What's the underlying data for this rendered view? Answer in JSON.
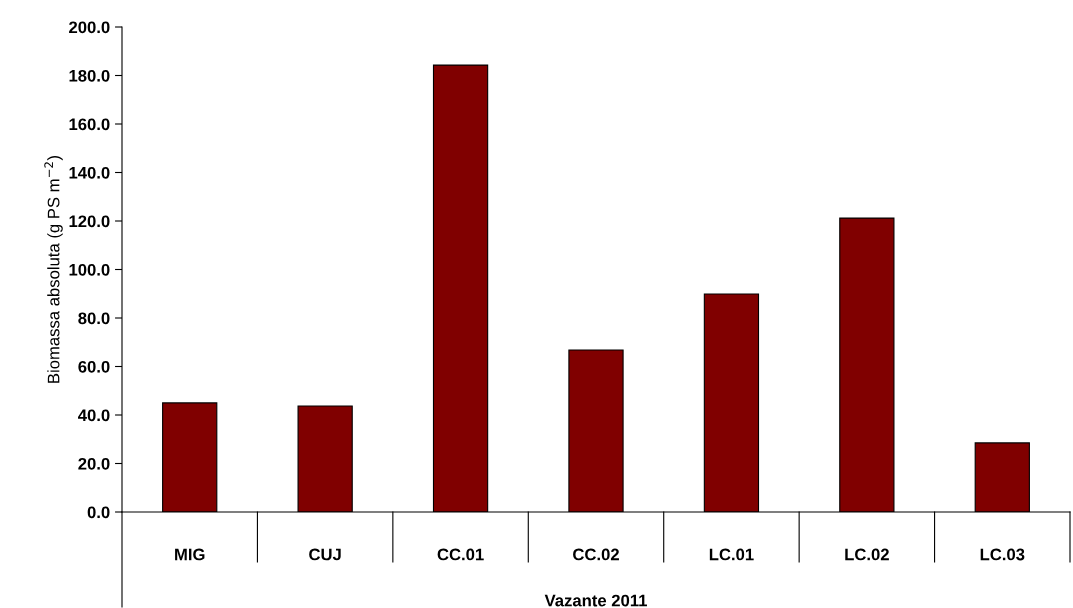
{
  "chart_data": {
    "type": "bar",
    "xlabel": "Vazante 2011",
    "ylabel": "Biomassa absoluta (g PS m$^{−2}$)",
    "categories": [
      "MIG",
      "CUJ",
      "CC.01",
      "CC.02",
      "LC.01",
      "LC.02",
      "LC.03"
    ],
    "values": [
      45.0,
      43.7,
      184.3,
      66.8,
      89.9,
      121.2,
      28.5
    ],
    "color": "#800000",
    "ylim": [
      0,
      200
    ],
    "yticks": [
      {
        "value": 0,
        "label": "0.0"
      },
      {
        "value": 20,
        "label": "20.0"
      },
      {
        "value": 40,
        "label": "40.0"
      },
      {
        "value": 60,
        "label": "60.0"
      },
      {
        "value": 80,
        "label": "80.0"
      },
      {
        "value": 100,
        "label": "100.0"
      },
      {
        "value": 120,
        "label": "120.0"
      },
      {
        "value": 140,
        "label": "140.0"
      },
      {
        "value": 160,
        "label": "160.0"
      },
      {
        "value": 180,
        "label": "180.0"
      },
      {
        "value": 200,
        "label": "200.0"
      }
    ],
    "grid": false,
    "legend": false
  }
}
